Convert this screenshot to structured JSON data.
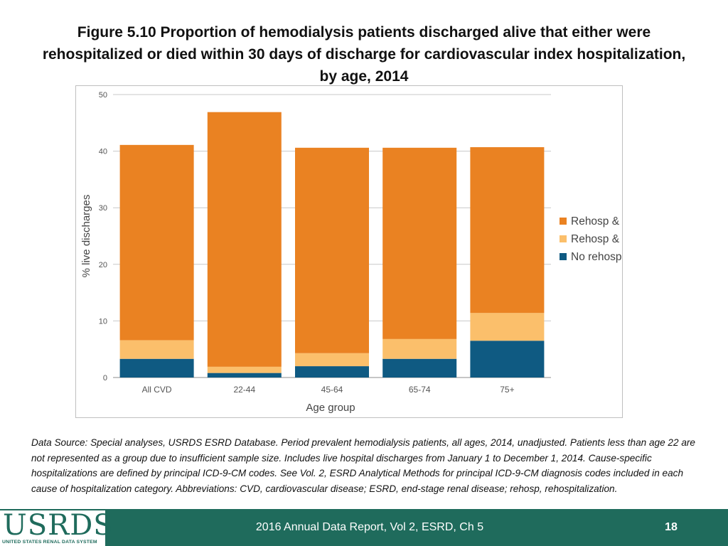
{
  "title": {
    "line1": "Figure 5.10 Proportion of hemodialysis patients discharged alive that either were",
    "line2": "rehospitalized or died within 30 days of discharge for cardiovascular index hospitalization,",
    "line3": "by age, 2014"
  },
  "chart_data": {
    "type": "bar",
    "stacked": true,
    "categories": [
      "All CVD",
      "22-44",
      "45-64",
      "65-74",
      "75+"
    ],
    "series": [
      {
        "name": "No rehosp & died",
        "color": "#0f5a82",
        "values": [
          3.3,
          0.8,
          2.0,
          3.3,
          6.5
        ]
      },
      {
        "name": "Rehosp & died",
        "color": "#fbbf6b",
        "values": [
          3.3,
          1.1,
          2.3,
          3.5,
          4.9
        ]
      },
      {
        "name": "Rehosp & alive",
        "color": "#ea8222",
        "values": [
          34.5,
          45.0,
          36.3,
          33.8,
          29.3
        ]
      }
    ],
    "legend_order": [
      "Rehosp & alive",
      "Rehosp & died",
      "No rehosp & died"
    ],
    "xlabel": "Age group",
    "ylabel": "% live discharges",
    "ylim": [
      0,
      50
    ],
    "yticks": [
      0,
      10,
      20,
      30,
      40,
      50
    ],
    "grid": true,
    "legend_position": "right"
  },
  "caption": "Data Source: Special analyses, USRDS ESRD Database. Period prevalent hemodialysis patients, all ages, 2014, unadjusted. Patients less than age 22 are not represented as a group due to insufficient sample size. Includes live hospital discharges from January 1 to December 1, 2014. Cause-specific hospitalizations are defined by principal ICD-9-CM codes. See Vol. 2, ESRD Analytical Methods for principal ICD-9-CM diagnosis codes included in each cause of hospitalization category. Abbreviations: CVD, cardiovascular disease; ESRD, end-stage renal disease; rehosp, rehospitalization.",
  "footer": {
    "logo_text": "USRDS",
    "logo_subtext": "UNITED STATES RENAL DATA SYSTEM",
    "report_label": "2016 Annual Data Report, Vol 2, ESRD, Ch 5",
    "page_number": "18"
  }
}
